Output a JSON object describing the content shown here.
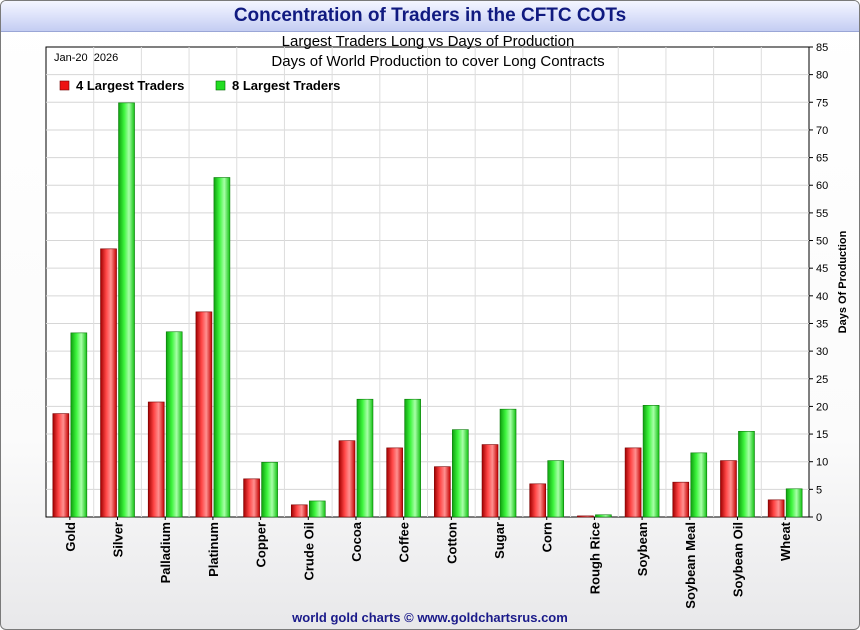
{
  "chart_data": {
    "type": "bar",
    "title": "Concentration of Traders in the CFTC COTs",
    "subtitle_1": "Largest Traders Long vs Days of Production",
    "subtitle_2": "Days of World Production to cover Long Contracts",
    "date_label": "Jan-20  2026",
    "ylabel": "Days Of Production",
    "ylim": [
      0,
      85
    ],
    "yticks": [
      "0",
      "5",
      "10",
      "15",
      "20",
      "25",
      "30",
      "35",
      "40",
      "45",
      "50",
      "55",
      "60",
      "65",
      "70",
      "75",
      "80",
      "85"
    ],
    "grid": true,
    "legend_position": "top-left",
    "categories": [
      "Gold",
      "Silver",
      "Palladium",
      "Platinum",
      "Copper",
      "Crude Oil",
      "Cocoa",
      "Coffee",
      "Cotton",
      "Sugar",
      "Corn",
      "Rough Rice",
      "Soybean",
      "Soybean Meal",
      "Soybean Oil",
      "Wheat"
    ],
    "series": [
      {
        "name": "4 Largest Traders",
        "color": "#ee1111",
        "values": [
          18.7,
          48.5,
          20.8,
          37.1,
          6.9,
          2.2,
          13.8,
          12.5,
          9.1,
          13.1,
          6.0,
          0.2,
          12.5,
          6.3,
          10.2,
          3.1
        ]
      },
      {
        "name": "8 Largest Traders",
        "color": "#22dd22",
        "values": [
          33.3,
          74.9,
          33.5,
          61.4,
          9.9,
          2.9,
          21.3,
          21.3,
          15.8,
          19.5,
          10.2,
          0.4,
          20.2,
          11.6,
          15.5,
          5.1
        ]
      }
    ]
  },
  "footer": {
    "credit": "world gold charts © www.goldchartsrus.com"
  }
}
